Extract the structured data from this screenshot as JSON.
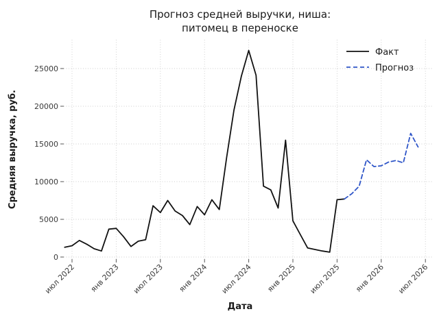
{
  "chart_data": {
    "type": "line",
    "title_lines": [
      "Прогноз средней выручки, ниша:",
      "питомец в переноске"
    ],
    "xlabel": "Дата",
    "ylabel": "Средняя выручка, руб.",
    "grid": true,
    "legend_position": "upper right",
    "ylim": [
      0,
      28800
    ],
    "y_ticks": [
      0,
      5000,
      10000,
      15000,
      20000,
      25000
    ],
    "x_ticks": [
      {
        "label": "июл 2022",
        "m": 1
      },
      {
        "label": "янв 2023",
        "m": 7
      },
      {
        "label": "июл 2023",
        "m": 13
      },
      {
        "label": "янв 2024",
        "m": 19
      },
      {
        "label": "июл 2024",
        "m": 25
      },
      {
        "label": "янв 2025",
        "m": 31
      },
      {
        "label": "июл 2025",
        "m": 37
      },
      {
        "label": "янв 2026",
        "m": 43
      },
      {
        "label": "июл 2026",
        "m": 49
      }
    ],
    "legend": [
      {
        "label": "Факт",
        "style": "solid",
        "color": "#111111"
      },
      {
        "label": "Прогноз",
        "style": "dashed",
        "color": "#2e55c8"
      }
    ],
    "series": [
      {
        "name": "Факт",
        "style": "solid",
        "color": "#111111",
        "start_month": "2022-06",
        "start_month_index": 0,
        "months": [
          "2022-06",
          "2022-07",
          "2022-08",
          "2022-09",
          "2022-10",
          "2022-11",
          "2022-12",
          "2023-01",
          "2023-02",
          "2023-03",
          "2023-04",
          "2023-05",
          "2023-06",
          "2023-07",
          "2023-08",
          "2023-09",
          "2023-10",
          "2023-11",
          "2023-12",
          "2024-01",
          "2024-02",
          "2024-03",
          "2024-04",
          "2024-05",
          "2024-06",
          "2024-07",
          "2024-08",
          "2024-09",
          "2024-10",
          "2024-11",
          "2024-12",
          "2025-01",
          "2025-02",
          "2025-03",
          "2025-04",
          "2025-05",
          "2025-06",
          "2025-07",
          "2025-08"
        ],
        "values": [
          1300,
          1500,
          2200,
          1700,
          1100,
          800,
          3700,
          3800,
          2700,
          1400,
          2100,
          2300,
          6800,
          5900,
          7500,
          6100,
          5500,
          4300,
          6700,
          5600,
          7600,
          6300,
          13200,
          19500,
          24000,
          27400,
          24100,
          9400,
          8900,
          6500,
          15500,
          4800,
          3000,
          1200,
          1000,
          800,
          650,
          7600,
          7700
        ]
      },
      {
        "name": "Прогноз",
        "style": "dashed",
        "color": "#2e55c8",
        "start_month": "2025-08",
        "start_month_index": 38,
        "months": [
          "2025-08",
          "2025-09",
          "2025-10",
          "2025-11",
          "2025-12",
          "2026-01",
          "2026-02",
          "2026-03",
          "2026-04",
          "2026-05",
          "2026-06"
        ],
        "values": [
          7700,
          8400,
          9400,
          12900,
          12000,
          12100,
          12600,
          12800,
          12500,
          16400,
          14600
        ]
      }
    ]
  }
}
